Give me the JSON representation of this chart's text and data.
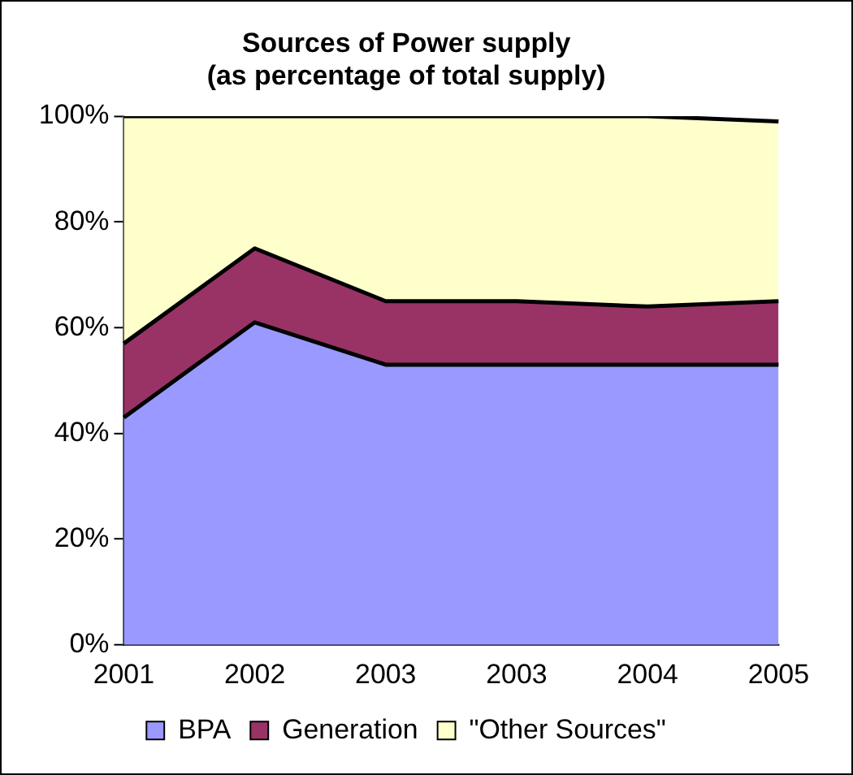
{
  "chart_data": {
    "type": "area",
    "title": "Sources of Power supply\n(as percentage of total supply)",
    "categories": [
      "2001",
      "2002",
      "2003",
      "2003",
      "2004",
      "2005"
    ],
    "stacked": true,
    "series": [
      {
        "name": "BPA",
        "color": "#9999ff",
        "values": [
          43,
          61,
          53,
          53,
          53,
          53
        ]
      },
      {
        "name": "Generation",
        "color": "#993366",
        "values": [
          14,
          14,
          12,
          12,
          11,
          12
        ]
      },
      {
        "name": "\"Other Sources\"",
        "color": "#ffffcc",
        "values": [
          43,
          25,
          35,
          35,
          36,
          34
        ]
      }
    ],
    "ylim": [
      0,
      100
    ],
    "yticks": [
      {
        "value": 0,
        "label": "0%"
      },
      {
        "value": 20,
        "label": "20%"
      },
      {
        "value": 40,
        "label": "40%"
      },
      {
        "value": 60,
        "label": "60%"
      },
      {
        "value": 80,
        "label": "80%"
      },
      {
        "value": 100,
        "label": "100%"
      }
    ],
    "grid": false,
    "legend": "bottom"
  }
}
